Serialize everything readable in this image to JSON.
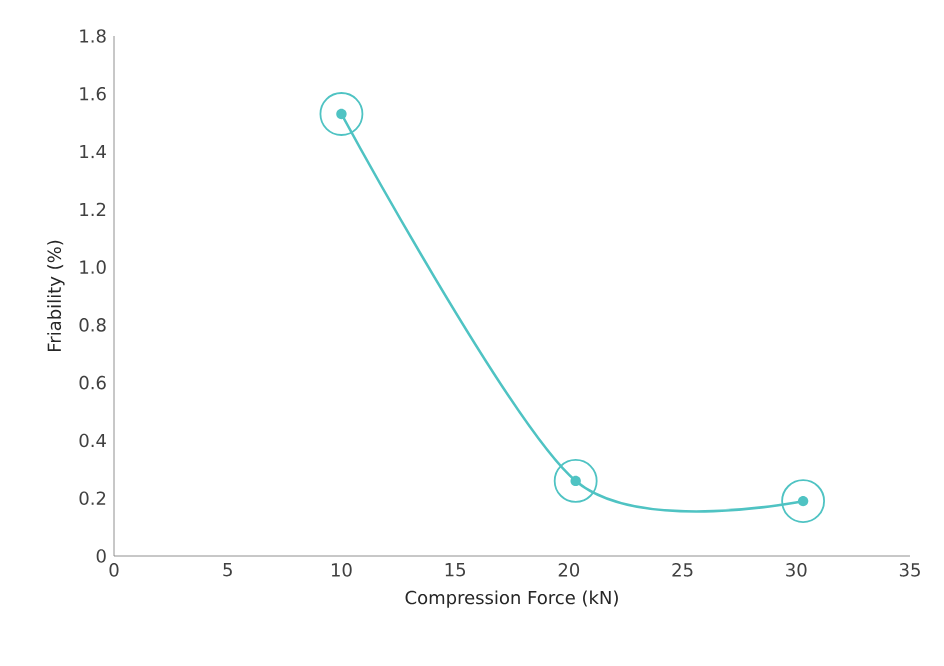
{
  "chart_data": {
    "type": "line",
    "xlabel": "Compression Force (kN)",
    "ylabel": "Friability (%)",
    "series": [
      {
        "color": "#4fc3c3",
        "x": [
          10,
          20.3,
          30.3
        ],
        "values": [
          1.53,
          0.26,
          0.19
        ]
      }
    ],
    "xlim": [
      0,
      35
    ],
    "xticks": [
      0,
      5,
      10,
      15,
      20,
      25,
      30,
      35
    ],
    "ylim": [
      0,
      1.8
    ],
    "yticks": [
      0,
      0.2,
      0.4,
      0.6,
      0.8,
      {
        "value": 1,
        "label": "1.0"
      },
      1.2,
      1.4,
      1.6,
      1.8
    ],
    "marker": "circle",
    "grid": false,
    "legend": false
  }
}
